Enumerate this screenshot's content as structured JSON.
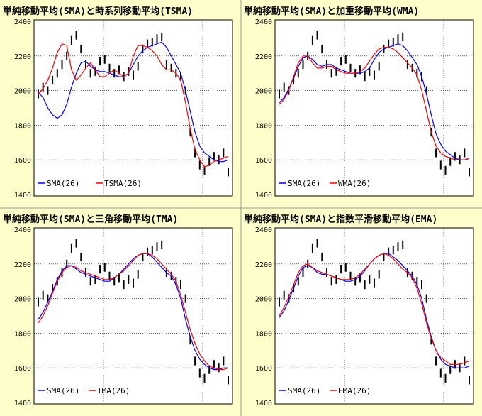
{
  "chart_data": [
    {
      "type": "line",
      "title": "単純移動平均(SMA)と時系列移動平均(TSMA)",
      "ylim": [
        1400,
        2400
      ],
      "yticks": [
        1400,
        1600,
        1800,
        2000,
        2200,
        2400
      ],
      "grid": true,
      "legend_position": "bottom-left",
      "series": [
        {
          "name": "SMA(26)",
          "color": "#0000ff",
          "values": [
            1990,
            1960,
            1900,
            1860,
            1840,
            1860,
            1920,
            2020,
            2100,
            2160,
            2170,
            2140,
            2120,
            2110,
            2110,
            2100,
            2090,
            2080,
            2080,
            2100,
            2150,
            2200,
            2230,
            2250,
            2260,
            2270,
            2280,
            2250,
            2200,
            2150,
            2100,
            2000,
            1880,
            1760,
            1680,
            1640,
            1620,
            1600,
            1590,
            1590,
            1600
          ]
        },
        {
          "name": "TSMA(26)",
          "color": "#ff0000",
          "values": [
            1980,
            2010,
            2060,
            2130,
            2220,
            2270,
            2260,
            2120,
            2060,
            2090,
            2130,
            2160,
            2120,
            2080,
            2080,
            2100,
            2120,
            2100,
            2080,
            2100,
            2200,
            2260,
            2260,
            2250,
            2230,
            2200,
            2150,
            2120,
            2120,
            2100,
            2060,
            1930,
            1780,
            1660,
            1600,
            1560,
            1570,
            1590,
            1600,
            1610,
            1620
          ]
        }
      ]
    },
    {
      "type": "line",
      "title": "単純移動平均(SMA)と加重移動平均(WMA)",
      "ylim": [
        1400,
        2400
      ],
      "yticks": [
        1400,
        1600,
        1800,
        2000,
        2200,
        2400
      ],
      "grid": true,
      "legend_position": "bottom-left",
      "series": [
        {
          "name": "SMA(26)",
          "color": "#0000ff",
          "values": [
            1930,
            1960,
            2010,
            2070,
            2140,
            2190,
            2200,
            2180,
            2150,
            2140,
            2150,
            2150,
            2130,
            2120,
            2110,
            2100,
            2100,
            2100,
            2110,
            2130,
            2180,
            2220,
            2240,
            2250,
            2260,
            2270,
            2260,
            2230,
            2190,
            2150,
            2080,
            1980,
            1860,
            1750,
            1690,
            1650,
            1630,
            1610,
            1600,
            1600,
            1600
          ]
        },
        {
          "name": "WMA(26)",
          "color": "#ff0000",
          "values": [
            1920,
            1950,
            2000,
            2080,
            2160,
            2200,
            2200,
            2160,
            2130,
            2130,
            2140,
            2140,
            2120,
            2110,
            2100,
            2100,
            2100,
            2110,
            2130,
            2170,
            2210,
            2240,
            2250,
            2250,
            2240,
            2220,
            2190,
            2160,
            2130,
            2090,
            2000,
            1880,
            1760,
            1680,
            1640,
            1620,
            1610,
            1600,
            1600,
            1600,
            1610
          ]
        }
      ]
    },
    {
      "type": "line",
      "title": "単純移動平均(SMA)と三角移動平均(TMA)",
      "ylim": [
        1400,
        2400
      ],
      "yticks": [
        1400,
        1600,
        1800,
        2000,
        2200,
        2400
      ],
      "grid": true,
      "legend_position": "bottom-left",
      "series": [
        {
          "name": "SMA(26)",
          "color": "#0000ff",
          "values": [
            1880,
            1920,
            1980,
            2040,
            2110,
            2160,
            2190,
            2190,
            2170,
            2150,
            2140,
            2130,
            2120,
            2110,
            2100,
            2100,
            2120,
            2140,
            2170,
            2200,
            2230,
            2250,
            2260,
            2260,
            2240,
            2210,
            2180,
            2150,
            2130,
            2080,
            2000,
            1880,
            1780,
            1700,
            1650,
            1620,
            1600,
            1590,
            1590,
            1600,
            1600
          ]
        },
        {
          "name": "TMA(26)",
          "color": "#ff0000",
          "values": [
            1860,
            1900,
            1960,
            2030,
            2100,
            2150,
            2180,
            2190,
            2180,
            2160,
            2150,
            2140,
            2130,
            2120,
            2110,
            2110,
            2120,
            2140,
            2160,
            2190,
            2220,
            2250,
            2260,
            2260,
            2250,
            2230,
            2200,
            2170,
            2140,
            2100,
            2020,
            1920,
            1820,
            1740,
            1680,
            1640,
            1610,
            1600,
            1590,
            1590,
            1600
          ]
        }
      ]
    },
    {
      "type": "line",
      "title": "単純移動平均(SMA)と指数平滑移動平均(EMA)",
      "ylim": [
        1400,
        2400
      ],
      "yticks": [
        1400,
        1600,
        1800,
        2000,
        2200,
        2400
      ],
      "grid": true,
      "legend_position": "bottom-left",
      "series": [
        {
          "name": "SMA(26)",
          "color": "#0000ff",
          "values": [
            1890,
            1930,
            1990,
            2060,
            2130,
            2180,
            2190,
            2180,
            2150,
            2140,
            2140,
            2130,
            2120,
            2110,
            2100,
            2100,
            2110,
            2130,
            2160,
            2200,
            2230,
            2250,
            2260,
            2260,
            2240,
            2220,
            2190,
            2160,
            2130,
            2080,
            2000,
            1880,
            1780,
            1700,
            1650,
            1620,
            1610,
            1600,
            1600,
            1600,
            1610
          ]
        },
        {
          "name": "EMA(26)",
          "color": "#ff0000",
          "values": [
            1900,
            1950,
            2010,
            2080,
            2150,
            2190,
            2200,
            2180,
            2160,
            2150,
            2140,
            2130,
            2120,
            2110,
            2110,
            2110,
            2120,
            2140,
            2170,
            2200,
            2230,
            2250,
            2260,
            2250,
            2230,
            2200,
            2170,
            2150,
            2120,
            2060,
            1970,
            1860,
            1770,
            1700,
            1660,
            1640,
            1620,
            1620,
            1620,
            1630,
            1640
          ]
        }
      ]
    }
  ],
  "price": {
    "color": "#000000",
    "values": [
      1980,
      2020,
      2000,
      2060,
      2100,
      2150,
      2200,
      2290,
      2320,
      2240,
      2150,
      2100,
      2110,
      2170,
      2180,
      2130,
      2100,
      2120,
      2080,
      2110,
      2090,
      2140,
      2240,
      2270,
      2280,
      2300,
      2310,
      2150,
      2130,
      2100,
      2080,
      2000,
      1760,
      1640,
      1570,
      1540,
      1590,
      1620,
      1600,
      1640,
      1530
    ]
  }
}
